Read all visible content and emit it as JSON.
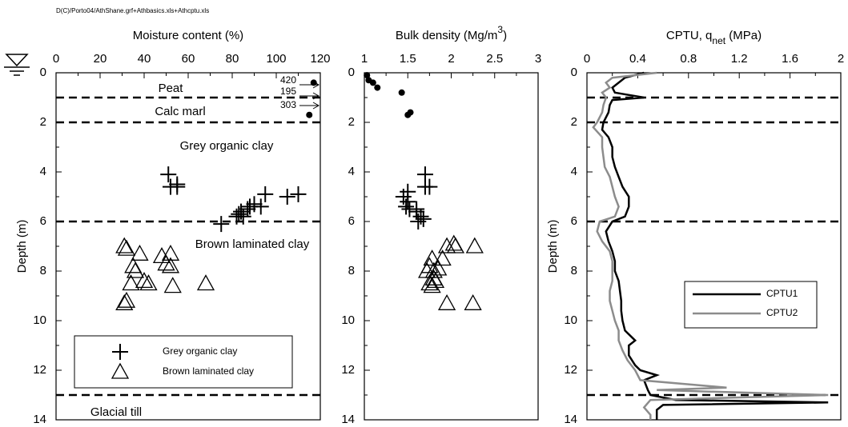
{
  "header": "D(C)/Porto04/AthShane.grf+Athbasics.xls+Athcptu.xls",
  "chart_data": [
    {
      "type": "scatter",
      "title": [
        "Moisture content (%)"
      ],
      "ylabel": "Depth (m)",
      "xlim": [
        0,
        120
      ],
      "xticks": [
        0,
        20,
        40,
        60,
        80,
        100,
        120
      ],
      "xaxis_position": "top",
      "ylim": [
        0,
        14
      ],
      "yticks": [
        0,
        2,
        4,
        6,
        8,
        10,
        12,
        14
      ],
      "y_inverted": true,
      "boundaries": [
        1,
        2,
        6,
        13
      ],
      "annotations": [
        "Peat",
        "Calc marl",
        "Grey organic clay",
        "Brown laminated clay",
        "Glacial till"
      ],
      "offscale_values": [
        420,
        195,
        303
      ],
      "legend": "lower left",
      "series": [
        {
          "marker": "dot",
          "color": "#000",
          "x": [
            117,
            115
          ],
          "y": [
            0.4,
            1.7
          ]
        },
        {
          "name": "Grey organic clay",
          "marker": "cross",
          "color": "#000",
          "x": [
            51,
            52,
            55,
            55,
            75,
            82,
            83,
            84,
            85,
            87,
            88,
            90,
            93,
            95,
            105,
            110
          ],
          "y": [
            4.1,
            4.6,
            4.6,
            4.5,
            6.1,
            5.8,
            5.7,
            5.6,
            5.8,
            5.5,
            5.4,
            5.3,
            5.4,
            4.9,
            5.0,
            4.9
          ]
        },
        {
          "name": "Brown laminated clay",
          "marker": "triangle",
          "color": "#000",
          "x": [
            31,
            32,
            38,
            35,
            36,
            34,
            40,
            42,
            48,
            50,
            52,
            52,
            53,
            68,
            31,
            32
          ],
          "y": [
            7.0,
            7.1,
            7.3,
            7.8,
            8.0,
            8.5,
            8.4,
            8.5,
            7.4,
            7.7,
            7.3,
            7.8,
            8.6,
            8.5,
            9.3,
            9.2
          ]
        }
      ]
    },
    {
      "type": "scatter",
      "title": [
        "Bulk density (Mg/m",
        "3",
        ")"
      ],
      "xlim": [
        1,
        3
      ],
      "xticks": [
        1,
        1.5,
        2,
        2.5,
        3
      ],
      "xaxis_position": "top",
      "ylim": [
        0,
        14
      ],
      "yticks": [
        0,
        2,
        4,
        6,
        8,
        10,
        12,
        14
      ],
      "y_inverted": true,
      "series": [
        {
          "marker": "dot",
          "color": "#000",
          "x": [
            1.03,
            1.05,
            1.1,
            1.15,
            1.43,
            1.5,
            1.53
          ],
          "y": [
            0.1,
            0.3,
            0.4,
            0.6,
            0.8,
            1.7,
            1.6
          ]
        },
        {
          "marker": "cross",
          "color": "#000",
          "x": [
            1.7,
            1.7,
            1.75,
            1.5,
            1.45,
            1.5,
            1.48,
            1.52,
            1.6,
            1.65,
            1.68,
            1.62,
            1.6
          ],
          "y": [
            4.1,
            4.6,
            4.6,
            4.8,
            5.0,
            5.2,
            5.4,
            5.5,
            5.6,
            5.8,
            5.9,
            6.0,
            5.5
          ]
        },
        {
          "marker": "triangle",
          "color": "#000",
          "x": [
            1.95,
            2.03,
            2.05,
            2.27,
            1.78,
            1.9,
            1.75,
            1.85,
            1.72,
            1.8,
            1.8,
            1.75,
            1.82,
            1.78,
            1.95,
            2.25
          ],
          "y": [
            7.0,
            6.9,
            7.0,
            7.0,
            7.5,
            7.5,
            7.8,
            7.9,
            8.0,
            8.0,
            8.3,
            8.5,
            8.4,
            8.6,
            9.3,
            9.3
          ]
        }
      ]
    },
    {
      "type": "line",
      "title": [
        "CPTU, q",
        "net",
        " (MPa)"
      ],
      "ylabel": "Depth (m)",
      "xlim": [
        0,
        2
      ],
      "xticks": [
        0,
        0.4,
        0.8,
        1.2,
        1.6,
        2
      ],
      "xaxis_position": "top",
      "ylim": [
        0,
        14
      ],
      "yticks": [
        0,
        2,
        4,
        6,
        8,
        10,
        12,
        14
      ],
      "y_inverted": true,
      "boundaries": [
        1,
        2,
        6,
        13
      ],
      "legend": "right",
      "series": [
        {
          "name": "CPTU1",
          "color": "#000",
          "x": [
            0.45,
            0.3,
            0.25,
            0.2,
            0.22,
            0.45,
            0.2,
            0.18,
            0.17,
            0.13,
            0.12,
            0.17,
            0.2,
            0.2,
            0.22,
            0.25,
            0.28,
            0.33,
            0.33,
            0.3,
            0.2,
            0.15,
            0.17,
            0.2,
            0.22,
            0.22,
            0.25,
            0.26,
            0.27,
            0.27,
            0.28,
            0.3,
            0.38,
            0.33,
            0.33,
            0.38,
            0.42,
            0.55,
            0.45,
            0.48,
            0.5,
            0.7,
            1.9,
            0.6,
            0.55,
            0.55
          ],
          "y": [
            0,
            0.2,
            0.4,
            0.6,
            0.8,
            1.0,
            1.1,
            1.3,
            1.6,
            2.0,
            2.3,
            2.6,
            3.0,
            3.4,
            3.8,
            4.2,
            4.6,
            5.0,
            5.4,
            5.8,
            6.0,
            6.4,
            6.8,
            7.2,
            7.6,
            8.0,
            8.4,
            8.8,
            9.2,
            9.6,
            10.0,
            10.4,
            10.8,
            11.0,
            11.4,
            11.8,
            12.0,
            12.2,
            12.4,
            12.8,
            13.0,
            13.2,
            13.3,
            13.4,
            13.6,
            14.0
          ]
        },
        {
          "name": "CPTU2",
          "color": "#8c8c8c",
          "x": [
            0.55,
            0.2,
            0.15,
            0.18,
            0.12,
            0.15,
            0.13,
            0.12,
            0.08,
            0.05,
            0.12,
            0.12,
            0.13,
            0.14,
            0.18,
            0.2,
            0.22,
            0.25,
            0.22,
            0.1,
            0.08,
            0.12,
            0.18,
            0.2,
            0.2,
            0.2,
            0.18,
            0.18,
            0.2,
            0.22,
            0.25,
            0.25,
            0.28,
            0.32,
            0.38,
            0.42,
            1.1,
            0.55,
            1.9,
            0.5,
            0.45,
            0.5,
            0.5
          ],
          "y": [
            0,
            0.2,
            0.4,
            0.6,
            0.8,
            1.0,
            1.3,
            1.6,
            2.0,
            2.2,
            2.6,
            3.0,
            3.4,
            3.8,
            4.2,
            4.6,
            5.0,
            5.4,
            5.8,
            6.0,
            6.4,
            6.8,
            7.2,
            7.6,
            8.0,
            8.4,
            8.8,
            9.2,
            9.6,
            10.0,
            10.4,
            10.8,
            11.2,
            11.6,
            12.0,
            12.4,
            12.7,
            12.8,
            13.0,
            13.2,
            13.5,
            13.8,
            14.0
          ]
        }
      ]
    }
  ]
}
